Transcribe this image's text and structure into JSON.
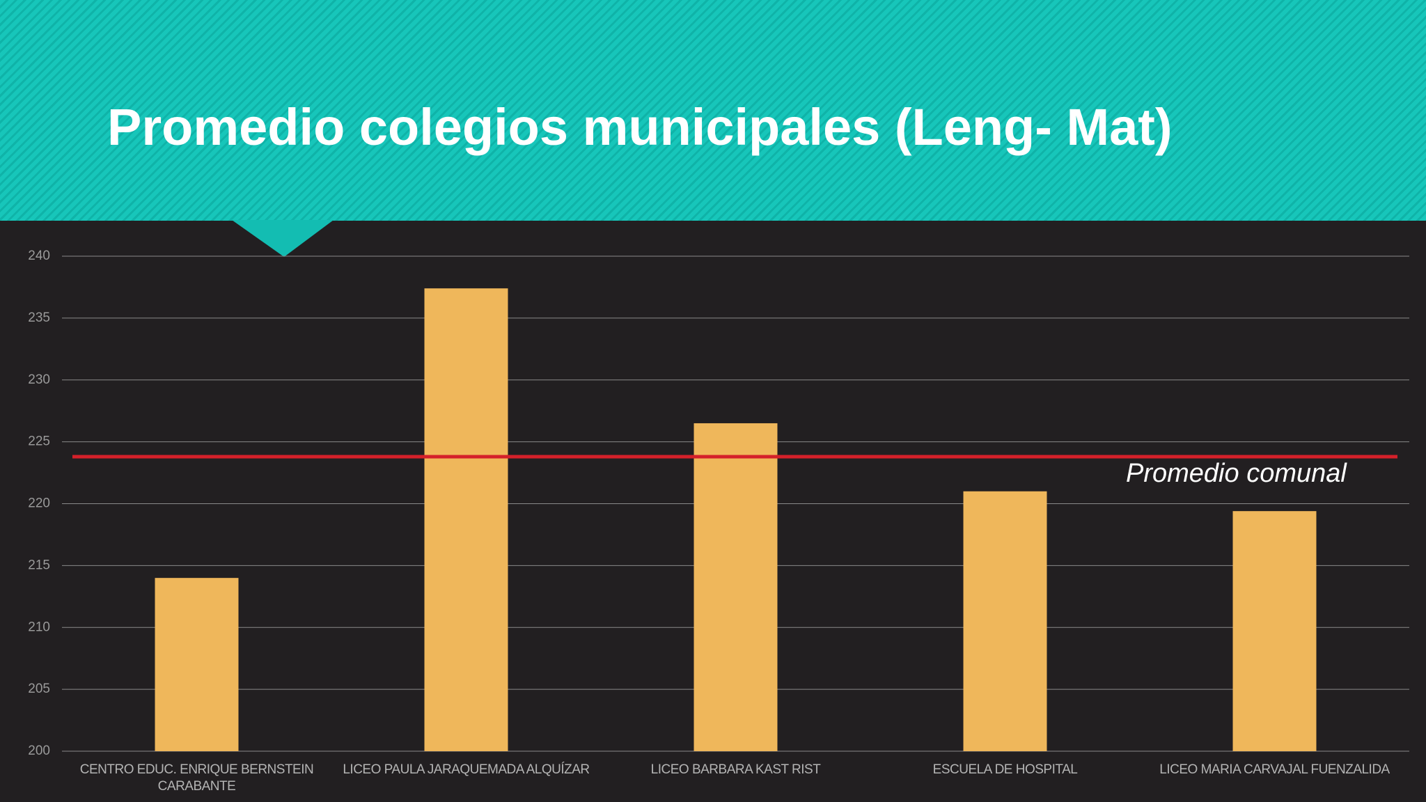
{
  "chart_data": {
    "type": "bar",
    "title": "Promedio colegios municipales (Leng- Mat)",
    "categories": [
      "CENTRO EDUC. ENRIQUE BERNSTEIN CARABANTE",
      "LICEO PAULA JARAQUEMADA ALQUÍZAR",
      "LICEO BARBARA KAST RIST",
      "ESCUELA DE HOSPITAL",
      "LICEO MARIA CARVAJAL FUENZALIDA"
    ],
    "values": [
      214,
      237.4,
      226.5,
      221,
      219.4
    ],
    "color": "#efb75b",
    "ylim": [
      200,
      240
    ],
    "yticks": [
      200,
      205,
      210,
      215,
      220,
      225,
      230,
      235,
      240
    ],
    "grid": true,
    "reference_line": {
      "label": "Promedio comunal",
      "value": 223.8,
      "color": "#d4202a"
    }
  }
}
